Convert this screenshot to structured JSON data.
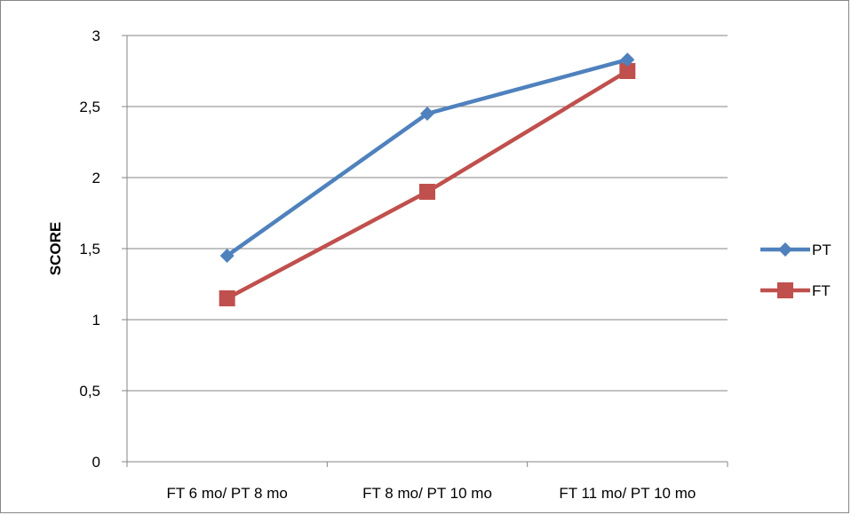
{
  "chart_data": {
    "type": "line",
    "title": "",
    "xlabel": "",
    "ylabel": "SCORE",
    "categories": [
      "FT 6 mo/ PT 8 mo",
      "FT 8 mo/ PT 10 mo",
      "FT 11 mo/ PT 10 mo"
    ],
    "ylim": [
      0,
      3
    ],
    "yticks": [
      0,
      0.5,
      1,
      1.5,
      2,
      2.5,
      3
    ],
    "ytick_labels": [
      "0",
      "0,5",
      "1",
      "1,5",
      "2",
      "2,5",
      "3"
    ],
    "grid": "horizontal",
    "legend_position": "right",
    "series": [
      {
        "name": "PT",
        "values": [
          1.45,
          2.45,
          2.83
        ],
        "color": "#4f81bd",
        "marker": "diamond"
      },
      {
        "name": "FT",
        "values": [
          1.15,
          1.9,
          2.75
        ],
        "color": "#c0504d",
        "marker": "square"
      }
    ]
  }
}
